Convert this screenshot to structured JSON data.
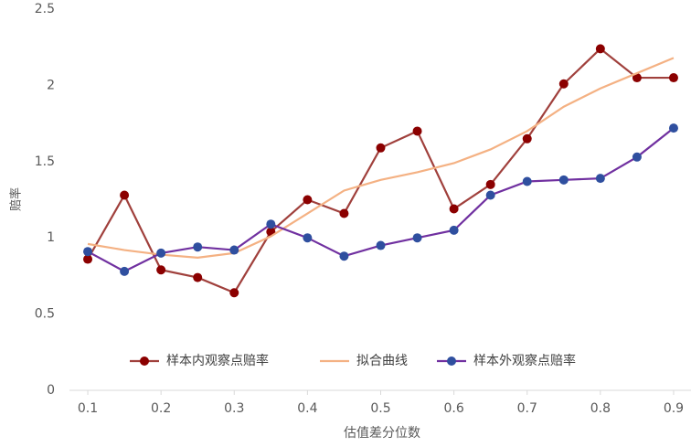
{
  "chart_data": {
    "type": "line",
    "x_label": "估值差分位数",
    "y_label": "赔率",
    "x": [
      0.1,
      0.15,
      0.2,
      0.25,
      0.3,
      0.35,
      0.4,
      0.45,
      0.5,
      0.55,
      0.6,
      0.65,
      0.7,
      0.75,
      0.8,
      0.85,
      0.9
    ],
    "series": [
      {
        "name": "样本内观察点赔率",
        "color": "#a0403c",
        "marker_color": "#8b0000",
        "values": [
          0.86,
          1.28,
          0.79,
          0.74,
          0.64,
          1.04,
          1.25,
          1.16,
          1.59,
          1.7,
          1.19,
          1.35,
          1.65,
          2.01,
          2.24,
          2.05,
          2.05
        ]
      },
      {
        "name": "拟合曲线",
        "color": "#f4b183",
        "values": [
          0.96,
          0.92,
          0.89,
          0.87,
          0.9,
          1.01,
          1.16,
          1.31,
          1.38,
          1.43,
          1.49,
          1.58,
          1.7,
          1.86,
          1.98,
          2.08,
          2.18
        ]
      },
      {
        "name": "样本外观察点赔率",
        "color": "#7030a0",
        "marker_color": "#2f4f9f",
        "values": [
          0.91,
          0.78,
          0.9,
          0.94,
          0.92,
          1.09,
          1.0,
          0.88,
          0.95,
          1.0,
          1.05,
          1.28,
          1.37,
          1.38,
          1.39,
          1.53,
          1.72
        ]
      }
    ],
    "xlim": [
      0.075,
      0.925
    ],
    "xticks": [
      0.1,
      0.2,
      0.3,
      0.4,
      0.5,
      0.6,
      0.7,
      0.8,
      0.9
    ],
    "ylim": [
      0,
      2.5
    ],
    "yticks": [
      0,
      0.5,
      1,
      1.5,
      2,
      2.5
    ],
    "grid": false
  }
}
